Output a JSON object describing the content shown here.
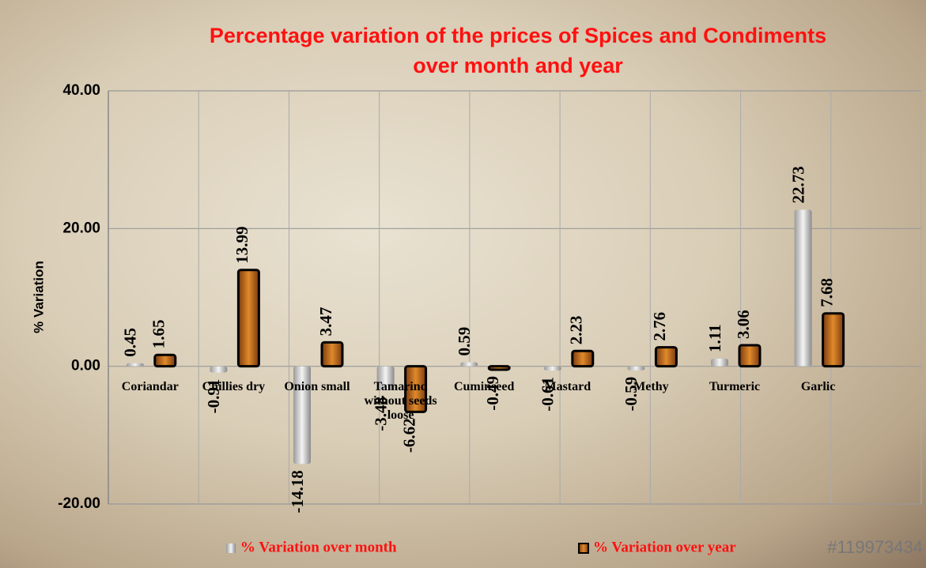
{
  "chart_data": {
    "type": "bar",
    "title": [
      "Percentage variation of the prices of Spices and Condiments",
      "over month and year"
    ],
    "y_label": "% Variation",
    "watermark": "#119973434",
    "categories": [
      "Coriandar",
      "Chillies dry",
      "Onion small",
      "Tamarind without seeds loose",
      "Cuminseed",
      "Mastard",
      "Methy",
      "Turmeric",
      "Garlic"
    ],
    "series": [
      {
        "name": "%  Variation over month",
        "color": "url(#silver)",
        "values": [
          0.45,
          -0.91,
          -14.18,
          -3.48,
          0.59,
          -0.61,
          -0.59,
          1.11,
          22.73
        ]
      },
      {
        "name": "%  Variation over year",
        "color": "url(#rust)",
        "values": [
          1.65,
          13.99,
          3.47,
          -6.62,
          -0.49,
          2.23,
          2.76,
          3.06,
          7.68
        ]
      }
    ],
    "ylim": [
      -20,
      40
    ],
    "yticks": [
      {
        "value": -20,
        "label": "-20.00"
      },
      {
        "value": 0,
        "label": "0.00"
      },
      {
        "value": 20,
        "label": "20.00"
      },
      {
        "value": 40,
        "label": "40.00"
      }
    ],
    "grid": true
  }
}
